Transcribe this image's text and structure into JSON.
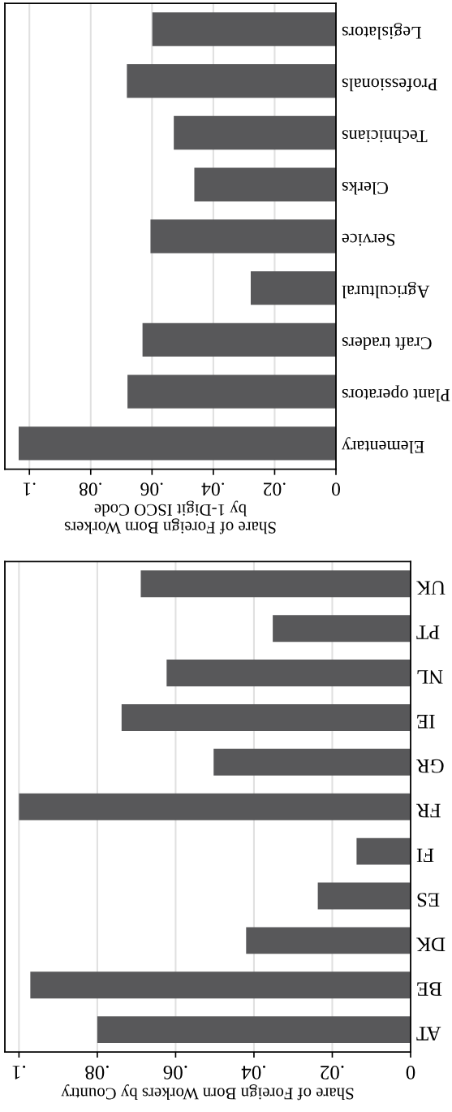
{
  "chart_data": [
    {
      "type": "bar",
      "orientation": "horizontal",
      "xlabel": "Share of Foreign Born Workers\nby 1-Digit ISCO Code",
      "categories": [
        "Legislators",
        "Professionals",
        "Technicians",
        "Clerks",
        "Service",
        "Agricultural",
        "Craft traders",
        "Plant operators",
        "Elementary"
      ],
      "values": [
        0.0599,
        0.0682,
        0.0529,
        0.0462,
        0.0605,
        0.0278,
        0.0631,
        0.068,
        0.1035
      ],
      "color": "#58585a",
      "xlim": [
        0.108,
        0
      ],
      "xticks": [
        0,
        {
          "value": 0.02,
          "label": ".02"
        },
        {
          "value": 0.04,
          "label": ".04"
        },
        {
          "value": 0.06,
          "label": ".06"
        },
        {
          "value": 0.08,
          "label": ".08"
        },
        {
          "value": 0.1,
          "label": ".1"
        }
      ],
      "grid": "x"
    },
    {
      "type": "bar",
      "orientation": "horizontal",
      "xlabel": "Share of Foreign Born Workers by Country",
      "categories": [
        "UK",
        "PT",
        "NL",
        "IE",
        "GR",
        "FR",
        "FI",
        "ES",
        "DK",
        "BE",
        "AT"
      ],
      "values": [
        0.0689,
        0.0352,
        0.0623,
        0.0738,
        0.0503,
        0.1,
        0.0138,
        0.0237,
        0.042,
        0.0971,
        0.08
      ],
      "color": "#58585a",
      "xlim": [
        0.1036,
        0
      ],
      "xticks": [
        0,
        {
          "value": 0.02,
          "label": ".02"
        },
        {
          "value": 0.04,
          "label": ".04"
        },
        {
          "value": 0.06,
          "label": ".06"
        },
        {
          "value": 0.08,
          "label": ".08"
        },
        {
          "value": 0.1,
          "label": ".1"
        }
      ],
      "grid": "x"
    }
  ]
}
